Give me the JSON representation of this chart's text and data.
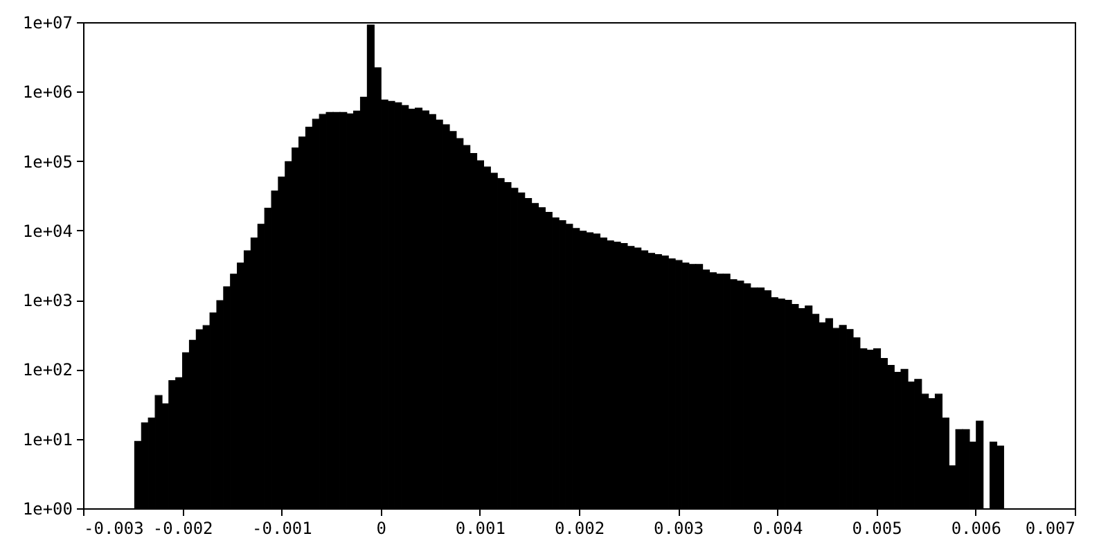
{
  "chart_data": {
    "type": "histogram",
    "color": "#000000",
    "log": "y",
    "bins": [
      -0.00248,
      -0.002411,
      -0.002342,
      -0.002273,
      -0.002204,
      -0.002135,
      -0.002066,
      -0.001997,
      -0.001928,
      -0.001859,
      -0.00179,
      -0.001721,
      -0.001652,
      -0.001583,
      -0.001514,
      -0.001445,
      -0.001376,
      -0.001307,
      -0.001238,
      -0.001169,
      -0.0011,
      -0.001031,
      -0.000962,
      -0.000893,
      -0.000824,
      -0.000755,
      -0.000686,
      -0.000617,
      -0.000548,
      -0.000479,
      -0.00041,
      -0.000341,
      -0.000272,
      -0.000203,
      -0.000134,
      -6.5e-05,
      4e-06,
      7.3e-05,
      0.000142,
      0.000211,
      0.00028,
      0.000349,
      0.000418,
      0.000487,
      0.000556,
      0.000625,
      0.000694,
      0.000763,
      0.000832,
      0.000901,
      0.00097,
      0.001039,
      0.001108,
      0.001177,
      0.001246,
      0.001315,
      0.001384,
      0.001453,
      0.001522,
      0.001591,
      0.00166,
      0.001729,
      0.001798,
      0.001867,
      0.001936,
      0.002005,
      0.002074,
      0.002143,
      0.002212,
      0.002281,
      0.00235,
      0.002419,
      0.002488,
      0.002557,
      0.002626,
      0.002695,
      0.002764,
      0.002833,
      0.002902,
      0.002971,
      0.00304,
      0.003109,
      0.003178,
      0.003247,
      0.003316,
      0.003385,
      0.003454,
      0.003523,
      0.003592,
      0.003661,
      0.00373,
      0.003799,
      0.003868,
      0.003937,
      0.004006,
      0.004075,
      0.004144,
      0.004213,
      0.004282,
      0.004351,
      0.00442,
      0.004489,
      0.004558,
      0.004627,
      0.004696,
      0.004765,
      0.004834,
      0.004903,
      0.004972,
      0.005041,
      0.00511,
      0.005179,
      0.005248,
      0.005317,
      0.005386,
      0.005455,
      0.005524,
      0.005593,
      0.005662,
      0.005731,
      0.0058,
      0.005869,
      0.005938,
      0.006007,
      0.006076,
      0.006145,
      0.006214,
      0.006283
    ],
    "values": [
      9.2,
      17,
      20,
      42,
      32,
      69,
      76,
      174,
      263,
      372,
      427,
      650,
      980,
      1550,
      2350,
      3400,
      5100,
      7800,
      12300,
      21000,
      37000,
      59000,
      98000,
      155000,
      222000,
      307000,
      400000,
      470000,
      500000,
      500000,
      500000,
      480000,
      525000,
      830000,
      9100000,
      2200000,
      760000,
      725000,
      690000,
      630000,
      560000,
      580000,
      528000,
      468000,
      389000,
      334000,
      266000,
      211000,
      168000,
      129000,
      101000,
      82000,
      67000,
      56000,
      49000,
      40500,
      34800,
      29000,
      24500,
      21300,
      18300,
      15200,
      13900,
      12300,
      10700,
      9800,
      9300,
      8900,
      7800,
      7100,
      6800,
      6500,
      5900,
      5600,
      5100,
      4700,
      4500,
      4300,
      3900,
      3700,
      3400,
      3250,
      3250,
      2700,
      2470,
      2360,
      2360,
      1960,
      1870,
      1710,
      1490,
      1490,
      1360,
      1080,
      1030,
      990,
      860,
      750,
      820,
      620,
      470,
      540,
      390,
      430,
      375,
      285,
      198,
      189,
      198,
      144,
      114,
      91,
      100,
      66,
      72,
      44,
      38,
      44,
      20,
      4.1,
      13.6,
      13.6,
      9.0,
      18,
      null,
      9.0,
      7.9
    ],
    "xlim": [
      -0.003,
      0.007
    ],
    "xticks": [
      -0.003,
      -0.002,
      -0.001,
      0,
      0.001,
      0.002,
      0.003,
      0.004,
      0.005,
      0.006,
      0.007
    ],
    "ylim": [
      1,
      10000000
    ],
    "yticks": [
      {
        "value": 1,
        "label": "1e+00"
      },
      {
        "value": 10,
        "label": "1e+01"
      },
      {
        "value": 100,
        "label": "1e+02"
      },
      {
        "value": 1000,
        "label": "1e+03"
      },
      {
        "value": 10000,
        "label": "1e+04"
      },
      {
        "value": 100000,
        "label": "1e+05"
      },
      {
        "value": 1000000,
        "label": "1e+06"
      },
      {
        "value": 10000000,
        "label": "1e+07"
      }
    ]
  }
}
